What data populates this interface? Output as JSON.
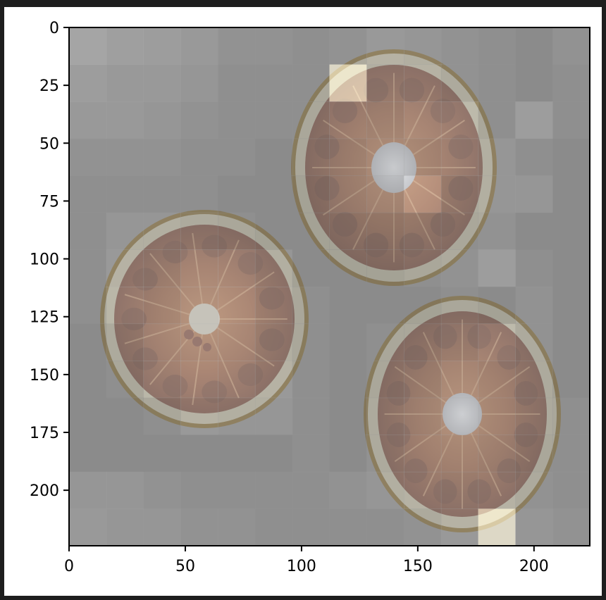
{
  "figure": {
    "kind": "image-with-attention-overlay",
    "image_subject": "three blood orange slices on grey background",
    "grid_cells": 14,
    "colors": {
      "background": "#1e1e1e",
      "axes_face": "#ffffff",
      "base_gray": "#8a8a8a",
      "rind_outer": "#7a5a14",
      "pith": "#c7c0a2",
      "flesh": "#8a4a2a",
      "segment": "#5b2a1c",
      "center": "#d8dde8",
      "highlight": "#fff6d6"
    }
  },
  "axes": {
    "x_ticks": [
      "0",
      "50",
      "100",
      "150",
      "200"
    ],
    "y_ticks": [
      "0",
      "25",
      "50",
      "75",
      "100",
      "125",
      "150",
      "175",
      "200"
    ],
    "x_range": [
      0,
      224
    ],
    "y_range": [
      0,
      224
    ]
  },
  "heatmap_levels": [
    [
      0.55,
      0.45,
      0.4,
      0.35,
      0.25,
      0.25,
      0.2,
      0.25,
      0.35,
      0.3,
      0.25,
      0.2,
      0.15,
      0.25
    ],
    [
      0.4,
      0.35,
      0.35,
      0.3,
      0.2,
      0.2,
      0.2,
      0.85,
      0.3,
      0.35,
      0.25,
      0.2,
      0.15,
      0.2
    ],
    [
      0.35,
      0.35,
      0.3,
      0.25,
      0.2,
      0.2,
      0.2,
      0.35,
      0.3,
      0.45,
      0.45,
      0.2,
      0.4,
      0.2
    ],
    [
      0.25,
      0.25,
      0.25,
      0.2,
      0.2,
      0.15,
      0.2,
      0.25,
      0.35,
      0.35,
      0.4,
      0.3,
      0.2,
      0.15
    ],
    [
      0.2,
      0.2,
      0.2,
      0.2,
      0.15,
      0.15,
      0.15,
      0.25,
      0.3,
      0.7,
      0.25,
      0.3,
      0.3,
      0.15
    ],
    [
      0.2,
      0.3,
      0.3,
      0.25,
      0.2,
      0.15,
      0.15,
      0.15,
      0.15,
      0.2,
      0.2,
      0.25,
      0.15,
      0.15
    ],
    [
      0.2,
      0.35,
      0.3,
      0.45,
      0.45,
      0.3,
      0.15,
      0.15,
      0.15,
      0.2,
      0.25,
      0.4,
      0.2,
      0.15
    ],
    [
      0.2,
      0.4,
      0.35,
      0.45,
      0.5,
      0.35,
      0.2,
      0.15,
      0.15,
      0.15,
      0.2,
      0.15,
      0.25,
      0.15
    ],
    [
      0.15,
      0.25,
      0.4,
      0.45,
      0.45,
      0.3,
      0.2,
      0.15,
      0.2,
      0.2,
      0.3,
      0.45,
      0.25,
      0.15
    ],
    [
      0.15,
      0.2,
      0.4,
      0.5,
      0.45,
      0.35,
      0.2,
      0.15,
      0.2,
      0.25,
      0.4,
      0.35,
      0.25,
      0.15
    ],
    [
      0.15,
      0.15,
      0.2,
      0.35,
      0.3,
      0.3,
      0.2,
      0.15,
      0.25,
      0.3,
      0.4,
      0.35,
      0.25,
      0.2
    ],
    [
      0.15,
      0.15,
      0.15,
      0.15,
      0.15,
      0.15,
      0.2,
      0.15,
      0.25,
      0.35,
      0.35,
      0.3,
      0.2,
      0.2
    ],
    [
      0.3,
      0.3,
      0.25,
      0.2,
      0.2,
      0.2,
      0.2,
      0.25,
      0.3,
      0.35,
      0.3,
      0.35,
      0.25,
      0.2
    ],
    [
      0.35,
      0.3,
      0.3,
      0.25,
      0.25,
      0.2,
      0.2,
      0.2,
      0.2,
      0.25,
      0.35,
      0.95,
      0.3,
      0.25
    ]
  ]
}
